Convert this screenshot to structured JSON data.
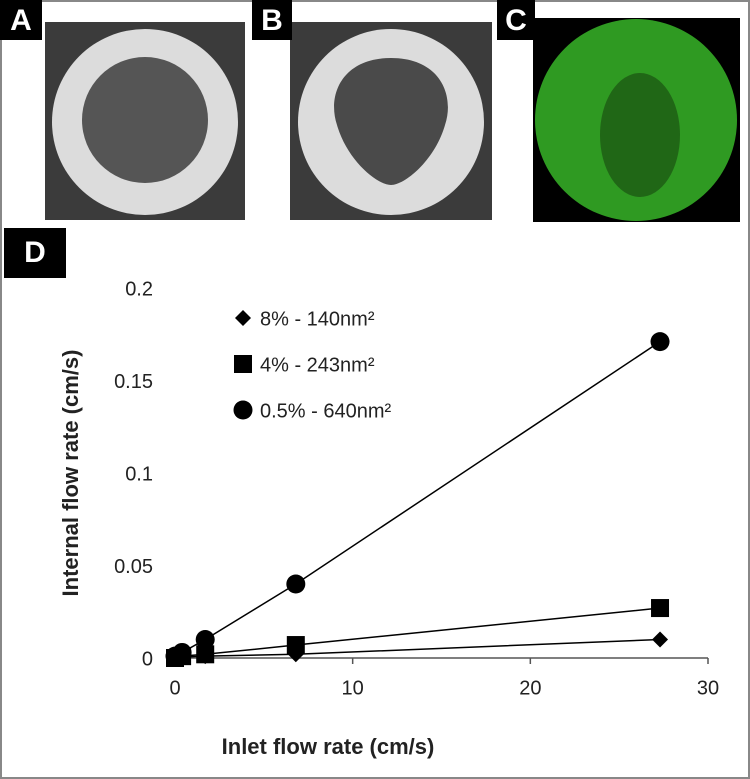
{
  "panels": [
    {
      "label": "A"
    },
    {
      "label": "B"
    },
    {
      "label": "C"
    }
  ],
  "chart_data": {
    "type": "line",
    "panel_label": "D",
    "x_label": "Inlet flow rate (cm/s)",
    "y_label": "Internal flow rate (cm/s)",
    "xlim": [
      0,
      30
    ],
    "xticks": [
      0,
      10,
      20,
      30
    ],
    "ylim": [
      0,
      0.2
    ],
    "yticks": [
      0,
      0.05,
      0.1,
      0.15,
      0.2
    ],
    "grid": false,
    "series": [
      {
        "name": "8% - 140nm²",
        "color": "#000000",
        "marker": "diamond",
        "x": [
          0,
          0.4,
          1.7,
          6.8,
          27.3
        ],
        "values": [
          0,
          0.0005,
          0.001,
          0.002,
          0.01
        ]
      },
      {
        "name": "4% - 243nm²",
        "color": "#000000",
        "marker": "square",
        "x": [
          0,
          0.4,
          1.7,
          6.8,
          27.3
        ],
        "values": [
          0,
          0.001,
          0.002,
          0.007,
          0.027
        ]
      },
      {
        "name": "0.5% - 640nm²",
        "color": "#000000",
        "marker": "circle",
        "x": [
          0,
          0.4,
          1.7,
          6.8,
          27.3
        ],
        "values": [
          0.001,
          0.003,
          0.01,
          0.04,
          0.171
        ]
      }
    ]
  }
}
